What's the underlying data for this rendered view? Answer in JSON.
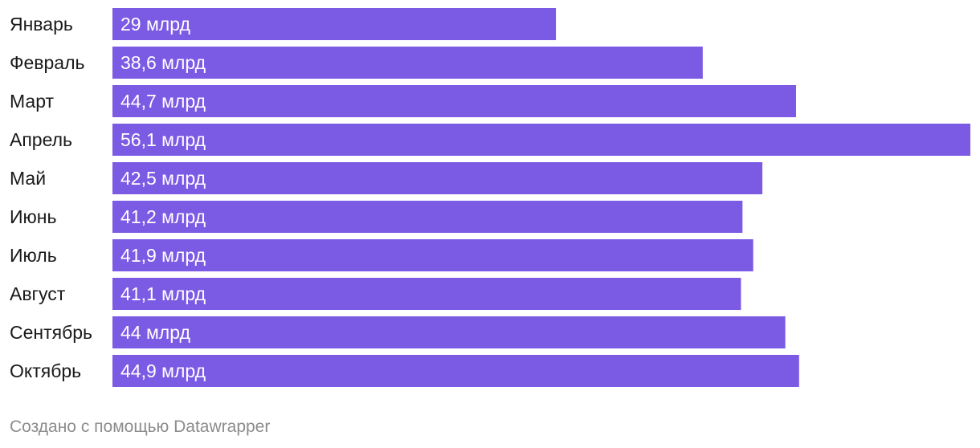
{
  "chart_data": {
    "type": "bar",
    "orientation": "horizontal",
    "categories": [
      "Январь",
      "Февраль",
      "Март",
      "Апрель",
      "Май",
      "Июнь",
      "Июль",
      "Август",
      "Сентябрь",
      "Октябрь"
    ],
    "values": [
      29,
      38.6,
      44.7,
      56.1,
      42.5,
      41.2,
      41.9,
      41.1,
      44,
      44.9
    ],
    "value_labels": [
      "29 млрд",
      "38,6 млрд",
      "44,7 млрд",
      "56,1 млрд",
      "42,5 млрд",
      "41,2 млрд",
      "41,9 млрд",
      "41,1 млрд",
      "44 млрд",
      "44,9 млрд"
    ],
    "title": "",
    "xlabel": "",
    "ylabel": "",
    "xlim": [
      0,
      56.1
    ],
    "grid": false,
    "legend": "none",
    "bar_color": "#7b5ae4"
  },
  "footer": {
    "credit": "Создано с помощью Datawrapper"
  }
}
